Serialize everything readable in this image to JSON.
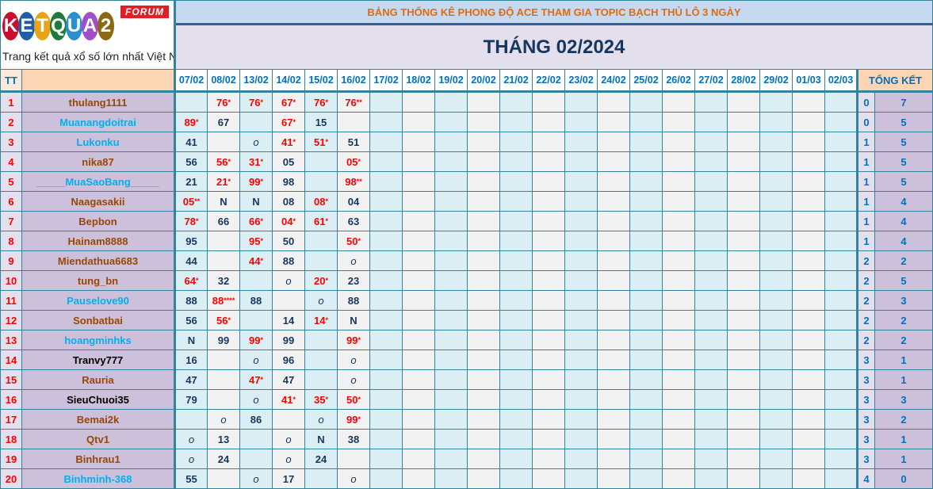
{
  "logo": {
    "letters": [
      "K",
      "E",
      "T",
      "Q",
      "U",
      "A",
      "2"
    ],
    "colors": [
      "#C8102E",
      "#1F5FA8",
      "#E8A317",
      "#1E7B3A",
      "#2A8FD0",
      "#A14FC8",
      "#8B6914"
    ],
    "badge": "FORUM",
    "slogan": "Trang kết quả xổ số lớn nhất Việt Nam"
  },
  "title": "BẢNG THỐNG KÊ PHONG ĐỘ ACE THAM GIA TOPIC BẠCH THỦ LÔ 3 NGÀY",
  "month": "THÁNG 02/2024",
  "header": {
    "tt": "TT",
    "name": "",
    "total": "TỔNG KẾT",
    "dates": [
      "07/02",
      "08/02",
      "13/02",
      "14/02",
      "15/02",
      "16/02",
      "17/02",
      "18/02",
      "19/02",
      "20/02",
      "21/02",
      "22/02",
      "23/02",
      "24/02",
      "25/02",
      "26/02",
      "27/02",
      "28/02",
      "29/02",
      "01/03",
      "02/03"
    ]
  },
  "name_colors": {
    "brown": "#974706",
    "blue": "#00B0F0",
    "black": "#000000"
  },
  "rows": [
    {
      "tt": "1",
      "name": "thulang1111",
      "color": "brown",
      "cells": [
        "",
        "76*",
        "76*",
        "67*",
        "76*",
        "76**"
      ],
      "t1": "0",
      "t2": "7"
    },
    {
      "tt": "2",
      "name": "Muanangdoitrai",
      "color": "blue",
      "cells": [
        "89*",
        "67",
        "",
        "67*",
        "15",
        ""
      ],
      "t1": "0",
      "t2": "5"
    },
    {
      "tt": "3",
      "name": "Lukonku",
      "color": "blue",
      "cells": [
        "41",
        "",
        "o",
        "41*",
        "51*",
        "51"
      ],
      "t1": "1",
      "t2": "5"
    },
    {
      "tt": "4",
      "name": "nika87",
      "color": "brown",
      "cells": [
        "56",
        "56*",
        "31*",
        "05",
        "",
        "05*"
      ],
      "t1": "1",
      "t2": "5"
    },
    {
      "tt": "5",
      "name": "_____MuaSaoBang_____",
      "color": "blue",
      "cells": [
        "21",
        "21*",
        "99*",
        "98",
        "",
        "98**"
      ],
      "t1": "1",
      "t2": "5"
    },
    {
      "tt": "6",
      "name": "Naagasakii",
      "color": "brown",
      "cells": [
        "05**",
        "N",
        "N",
        "08",
        "08*",
        "04"
      ],
      "t1": "1",
      "t2": "4"
    },
    {
      "tt": "7",
      "name": "Bepbon",
      "color": "brown",
      "cells": [
        "78*",
        "66",
        "66*",
        "04*",
        "61*",
        "63"
      ],
      "t1": "1",
      "t2": "4"
    },
    {
      "tt": "8",
      "name": "Hainam8888",
      "color": "brown",
      "cells": [
        "95",
        "",
        "95*",
        "50",
        "",
        "50*"
      ],
      "t1": "1",
      "t2": "4"
    },
    {
      "tt": "9",
      "name": "Miendathua6683",
      "color": "brown",
      "cells": [
        "44",
        "",
        "44*",
        "88",
        "",
        "o"
      ],
      "t1": "2",
      "t2": "2"
    },
    {
      "tt": "10",
      "name": "tung_bn",
      "color": "brown",
      "cells": [
        "64*",
        "32",
        "",
        "o",
        "20*",
        "23"
      ],
      "t1": "2",
      "t2": "5"
    },
    {
      "tt": "11",
      "name": "Pauselove90",
      "color": "blue",
      "cells": [
        "88",
        "88****",
        "88",
        "",
        "o",
        "88"
      ],
      "t1": "2",
      "t2": "3"
    },
    {
      "tt": "12",
      "name": "Sonbatbai",
      "color": "brown",
      "cells": [
        "56",
        "56*",
        "",
        "14",
        "14*",
        "N"
      ],
      "t1": "2",
      "t2": "2"
    },
    {
      "tt": "13",
      "name": "hoangminhks",
      "color": "blue",
      "cells": [
        "N",
        "99",
        "99*",
        "99",
        "",
        "99*"
      ],
      "t1": "2",
      "t2": "2"
    },
    {
      "tt": "14",
      "name": "Tranvy777",
      "color": "black",
      "cells": [
        "16",
        "",
        "o",
        "96",
        "",
        "o"
      ],
      "t1": "3",
      "t2": "1"
    },
    {
      "tt": "15",
      "name": "Rauria",
      "color": "brown",
      "cells": [
        "47",
        "",
        "47*",
        "47",
        "",
        "o"
      ],
      "t1": "3",
      "t2": "1"
    },
    {
      "tt": "16",
      "name": "SieuChuoi35",
      "color": "black",
      "cells": [
        "79",
        "",
        "o",
        "41*",
        "35*",
        "50*"
      ],
      "t1": "3",
      "t2": "3"
    },
    {
      "tt": "17",
      "name": "Bemai2k",
      "color": "brown",
      "cells": [
        "",
        "o",
        "86",
        "",
        "o",
        "99*"
      ],
      "t1": "3",
      "t2": "2"
    },
    {
      "tt": "18",
      "name": "Qtv1",
      "color": "brown",
      "cells": [
        "o",
        "13",
        "",
        "o",
        "N",
        "38"
      ],
      "t1": "3",
      "t2": "1"
    },
    {
      "tt": "19",
      "name": "Binhrau1",
      "color": "brown",
      "cells": [
        "o",
        "24",
        "",
        "o",
        "24",
        ""
      ],
      "t1": "3",
      "t2": "1"
    },
    {
      "tt": "20",
      "name": "Binhminh-368",
      "color": "blue",
      "cells": [
        "55",
        "",
        "o",
        "17",
        "",
        "o"
      ],
      "t1": "4",
      "t2": "0"
    }
  ]
}
